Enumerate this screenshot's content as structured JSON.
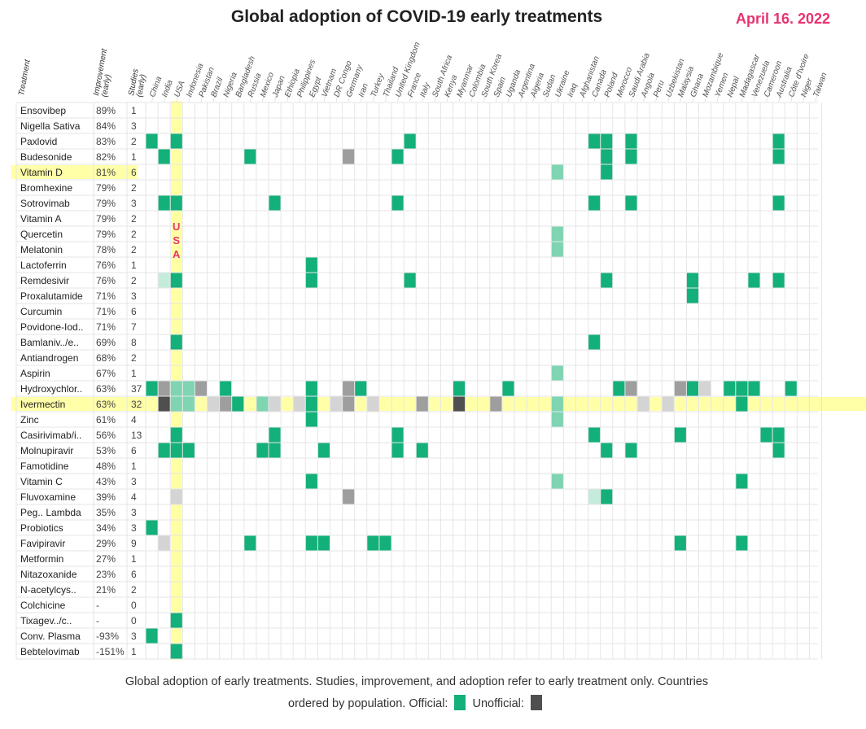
{
  "page": {
    "title": "Global adoption of COVID-19 early treatments",
    "date": "April 16. 2022",
    "date_color": "#e8336e",
    "caption_line1": "Global adoption of early treatments. Studies, improvement, and adoption refer to early treatment only. Countries",
    "caption_line2_prefix": "ordered by population. Official:",
    "caption_line2_middle": "Unofficial:"
  },
  "colors": {
    "official": "#14b07a",
    "official_light": "#7fd4b2",
    "official_pale": "#c5ecdb",
    "unofficial": "#4f4f4f",
    "unofficial_mid": "#9e9e9e",
    "unofficial_light": "#d4d4d4",
    "highlight": "#ffff99",
    "usa_label": "#e8336e"
  },
  "chart_data": {
    "type": "heatmap",
    "title": "Global adoption of COVID-19 early treatments",
    "column_headers": [
      "Treatment",
      "Improvement (early)",
      "Studies (early)"
    ],
    "usa_label": [
      "U",
      "S",
      "A"
    ],
    "countries": [
      "China",
      "India",
      "USA",
      "Indonesia",
      "Pakistan",
      "Brazil",
      "Nigeria",
      "Bangladesh",
      "Russia",
      "Mexico",
      "Japan",
      "Ethiopia",
      "Philippines",
      "Egypt",
      "Vietnam",
      "DR Congo",
      "Germany",
      "Iran",
      "Turkey",
      "Thailand",
      "United Kingdom",
      "France",
      "Italy",
      "South Africa",
      "Kenya",
      "Myanmar",
      "Colombia",
      "South Korea",
      "Spain",
      "Uganda",
      "Argentina",
      "Algeria",
      "Sudan",
      "Ukraine",
      "Iraq",
      "Afghanistan",
      "Canada",
      "Poland",
      "Morocco",
      "Saudi Arabia",
      "Angola",
      "Peru",
      "Uzbekistan",
      "Malaysia",
      "Ghana",
      "Mozambique",
      "Yemen",
      "Nepal",
      "Madagascar",
      "Venezuela",
      "Cameroon",
      "Australia",
      "Côte d'Ivoire",
      "Niger",
      "Taiwan"
    ],
    "highlight_rows": [
      "Vitamin D",
      "Ivermectin"
    ],
    "highlight_column": "USA",
    "legend": [
      "Official",
      "Unofficial"
    ],
    "treatments": [
      {
        "name": "Ensovibep",
        "improvement": "89%",
        "studies": "1",
        "cells": []
      },
      {
        "name": "Nigella Sativa",
        "improvement": "84%",
        "studies": "3",
        "cells": []
      },
      {
        "name": "Paxlovid",
        "improvement": "83%",
        "studies": "2",
        "cells": [
          [
            0,
            "o"
          ],
          [
            2,
            "o"
          ],
          [
            21,
            "o"
          ],
          [
            36,
            "o"
          ],
          [
            37,
            "o"
          ],
          [
            39,
            "o"
          ],
          [
            51,
            "o"
          ]
        ]
      },
      {
        "name": "Budesonide",
        "improvement": "82%",
        "studies": "1",
        "cells": [
          [
            1,
            "o"
          ],
          [
            8,
            "o"
          ],
          [
            16,
            "um"
          ],
          [
            20,
            "o"
          ],
          [
            37,
            "o"
          ],
          [
            39,
            "o"
          ],
          [
            51,
            "o"
          ]
        ]
      },
      {
        "name": "Vitamin D",
        "improvement": "81%",
        "studies": "6",
        "cells": [
          [
            33,
            "ol"
          ],
          [
            37,
            "o"
          ]
        ]
      },
      {
        "name": "Bromhexine",
        "improvement": "79%",
        "studies": "2",
        "cells": []
      },
      {
        "name": "Sotrovimab",
        "improvement": "79%",
        "studies": "3",
        "cells": [
          [
            1,
            "o"
          ],
          [
            2,
            "o"
          ],
          [
            10,
            "o"
          ],
          [
            20,
            "o"
          ],
          [
            36,
            "o"
          ],
          [
            39,
            "o"
          ],
          [
            51,
            "o"
          ]
        ]
      },
      {
        "name": "Vitamin A",
        "improvement": "79%",
        "studies": "2",
        "cells": []
      },
      {
        "name": "Quercetin",
        "improvement": "79%",
        "studies": "2",
        "cells": [
          [
            33,
            "ol"
          ]
        ]
      },
      {
        "name": "Melatonin",
        "improvement": "78%",
        "studies": "2",
        "cells": [
          [
            33,
            "ol"
          ]
        ]
      },
      {
        "name": "Lactoferrin",
        "improvement": "76%",
        "studies": "1",
        "cells": [
          [
            13,
            "o"
          ]
        ]
      },
      {
        "name": "Remdesivir",
        "improvement": "76%",
        "studies": "2",
        "cells": [
          [
            1,
            "op"
          ],
          [
            2,
            "o"
          ],
          [
            13,
            "o"
          ],
          [
            21,
            "o"
          ],
          [
            37,
            "o"
          ],
          [
            44,
            "o"
          ],
          [
            49,
            "o"
          ],
          [
            51,
            "o"
          ]
        ]
      },
      {
        "name": "Proxalutamide",
        "improvement": "71%",
        "studies": "3",
        "cells": [
          [
            44,
            "o"
          ]
        ]
      },
      {
        "name": "Curcumin",
        "improvement": "71%",
        "studies": "6",
        "cells": []
      },
      {
        "name": "Povidone-Iod..",
        "improvement": "71%",
        "studies": "7",
        "cells": []
      },
      {
        "name": "Bamlaniv../e..",
        "improvement": "69%",
        "studies": "8",
        "cells": [
          [
            2,
            "o"
          ],
          [
            36,
            "o"
          ]
        ]
      },
      {
        "name": "Antiandrogen",
        "improvement": "68%",
        "studies": "2",
        "cells": []
      },
      {
        "name": "Aspirin",
        "improvement": "67%",
        "studies": "1",
        "cells": [
          [
            33,
            "ol"
          ]
        ]
      },
      {
        "name": "Hydroxychlor..",
        "improvement": "63%",
        "studies": "37",
        "cells": [
          [
            0,
            "o"
          ],
          [
            1,
            "um"
          ],
          [
            2,
            "ol"
          ],
          [
            3,
            "ol"
          ],
          [
            4,
            "um"
          ],
          [
            6,
            "o"
          ],
          [
            13,
            "o"
          ],
          [
            16,
            "um"
          ],
          [
            17,
            "o"
          ],
          [
            25,
            "o"
          ],
          [
            29,
            "o"
          ],
          [
            38,
            "o"
          ],
          [
            39,
            "um"
          ],
          [
            43,
            "um"
          ],
          [
            44,
            "o"
          ],
          [
            45,
            "ul"
          ],
          [
            47,
            "o"
          ],
          [
            48,
            "o"
          ],
          [
            49,
            "o"
          ],
          [
            52,
            "o"
          ]
        ]
      },
      {
        "name": "Ivermectin",
        "improvement": "63%",
        "studies": "32",
        "cells": [
          [
            1,
            "u"
          ],
          [
            2,
            "ol"
          ],
          [
            3,
            "ol"
          ],
          [
            5,
            "ul"
          ],
          [
            6,
            "um"
          ],
          [
            7,
            "o"
          ],
          [
            9,
            "ol"
          ],
          [
            10,
            "ul"
          ],
          [
            12,
            "ul"
          ],
          [
            13,
            "o"
          ],
          [
            15,
            "ul"
          ],
          [
            16,
            "um"
          ],
          [
            18,
            "ul"
          ],
          [
            22,
            "um"
          ],
          [
            25,
            "u"
          ],
          [
            28,
            "um"
          ],
          [
            33,
            "ol"
          ],
          [
            40,
            "ul"
          ],
          [
            42,
            "ul"
          ],
          [
            48,
            "o"
          ]
        ]
      },
      {
        "name": "Zinc",
        "improvement": "61%",
        "studies": "4",
        "cells": [
          [
            13,
            "o"
          ],
          [
            33,
            "ol"
          ]
        ]
      },
      {
        "name": "Casirivimab/i..",
        "improvement": "56%",
        "studies": "13",
        "cells": [
          [
            2,
            "o"
          ],
          [
            10,
            "o"
          ],
          [
            20,
            "o"
          ],
          [
            36,
            "o"
          ],
          [
            43,
            "o"
          ],
          [
            50,
            "o"
          ],
          [
            51,
            "o"
          ]
        ]
      },
      {
        "name": "Molnupiravir",
        "improvement": "53%",
        "studies": "6",
        "cells": [
          [
            1,
            "o"
          ],
          [
            2,
            "o"
          ],
          [
            3,
            "o"
          ],
          [
            9,
            "o"
          ],
          [
            10,
            "o"
          ],
          [
            14,
            "o"
          ],
          [
            20,
            "o"
          ],
          [
            22,
            "o"
          ],
          [
            37,
            "o"
          ],
          [
            39,
            "o"
          ],
          [
            51,
            "o"
          ]
        ]
      },
      {
        "name": "Famotidine",
        "improvement": "48%",
        "studies": "1",
        "cells": []
      },
      {
        "name": "Vitamin C",
        "improvement": "43%",
        "studies": "3",
        "cells": [
          [
            13,
            "o"
          ],
          [
            33,
            "ol"
          ],
          [
            48,
            "o"
          ]
        ]
      },
      {
        "name": "Fluvoxamine",
        "improvement": "39%",
        "studies": "4",
        "cells": [
          [
            2,
            "ul"
          ],
          [
            16,
            "um"
          ],
          [
            36,
            "op"
          ],
          [
            37,
            "o"
          ]
        ]
      },
      {
        "name": "Peg.. Lambda",
        "improvement": "35%",
        "studies": "3",
        "cells": []
      },
      {
        "name": "Probiotics",
        "improvement": "34%",
        "studies": "3",
        "cells": [
          [
            0,
            "o"
          ]
        ]
      },
      {
        "name": "Favipiravir",
        "improvement": "29%",
        "studies": "9",
        "cells": [
          [
            1,
            "ul"
          ],
          [
            8,
            "o"
          ],
          [
            13,
            "o"
          ],
          [
            14,
            "o"
          ],
          [
            18,
            "o"
          ],
          [
            19,
            "o"
          ],
          [
            43,
            "o"
          ],
          [
            48,
            "o"
          ]
        ]
      },
      {
        "name": "Metformin",
        "improvement": "27%",
        "studies": "1",
        "cells": []
      },
      {
        "name": "Nitazoxanide",
        "improvement": "23%",
        "studies": "6",
        "cells": []
      },
      {
        "name": "N-acetylcys..",
        "improvement": "21%",
        "studies": "2",
        "cells": []
      },
      {
        "name": "Colchicine",
        "improvement": "-",
        "studies": "0",
        "cells": []
      },
      {
        "name": "Tixagev../c..",
        "improvement": "-",
        "studies": "0",
        "cells": [
          [
            2,
            "o"
          ]
        ]
      },
      {
        "name": "Conv. Plasma",
        "improvement": "-93%",
        "studies": "3",
        "cells": [
          [
            0,
            "o"
          ]
        ]
      },
      {
        "name": "Bebtelovimab",
        "improvement": "-151%",
        "studies": "1",
        "cells": [
          [
            2,
            "o"
          ]
        ]
      }
    ]
  }
}
